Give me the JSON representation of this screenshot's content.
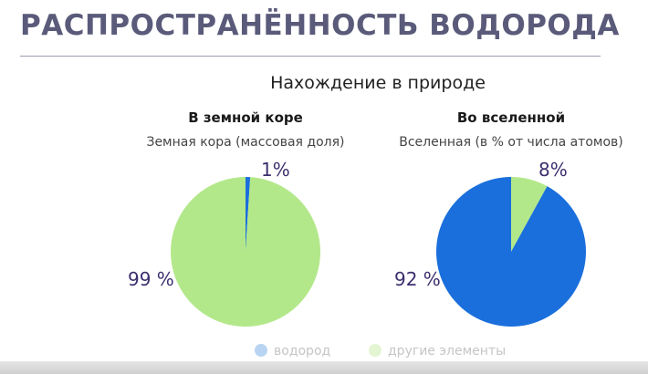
{
  "slide": {
    "title": "РАСПРОСТРАНЁННОСТЬ ВОДОРОДА",
    "subtitle": "Нахождение в природе"
  },
  "colors": {
    "hydrogen": "#1a6fdc",
    "other": "#b3e88a",
    "hydrogen_legend": "#b8d4f2",
    "other_legend": "#e3f5d2",
    "label": "#3d2f6e"
  },
  "chart_data": [
    {
      "type": "pie",
      "heading": "В земной коре",
      "title": "Земная кора (массовая доля)",
      "slices": [
        {
          "name": "водород",
          "value": 1,
          "label": "1%"
        },
        {
          "name": "другие элементы",
          "value": 99,
          "label": "99 %"
        }
      ]
    },
    {
      "type": "pie",
      "heading": "Во вселенной",
      "title": "Вселенная (в % от числа атомов)",
      "slices": [
        {
          "name": "водород",
          "value": 92,
          "label": "92 %"
        },
        {
          "name": "другие элементы",
          "value": 8,
          "label": "8%"
        }
      ]
    }
  ],
  "legend": [
    "водород",
    "другие элементы"
  ]
}
